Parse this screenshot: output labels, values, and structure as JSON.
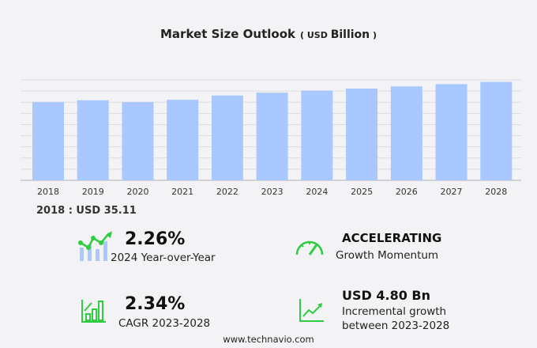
{
  "chart_data": {
    "type": "bar",
    "title": "Market Size Outlook",
    "unit_prefix": "USD",
    "unit": "Billion",
    "categories": [
      "2018",
      "2019",
      "2020",
      "2021",
      "2022",
      "2023",
      "2024",
      "2025",
      "2026",
      "2027",
      "2028"
    ],
    "values": [
      35.11,
      35.9,
      35.1,
      36.1,
      38.0,
      39.3,
      40.2,
      41.1,
      42.1,
      43.1,
      44.1
    ],
    "ylim": [
      0,
      45
    ],
    "grid": true,
    "bar_color": "#a8c8ff"
  },
  "base_label": "2018 : USD  35.11",
  "kpis": {
    "yoy_value": "2.26%",
    "yoy_label": "2024 Year-over-Year",
    "momentum_value": "ACCELERATING",
    "momentum_label": "Growth Momentum",
    "cagr_value": "2.34%",
    "cagr_label": "CAGR 2023-2028",
    "incr_value": "USD 4.80 Bn",
    "incr_label_1": "Incremental growth",
    "incr_label_2": "between 2023-2028"
  },
  "footer": "www.technavio.com",
  "accent_color": "#2ecc40"
}
